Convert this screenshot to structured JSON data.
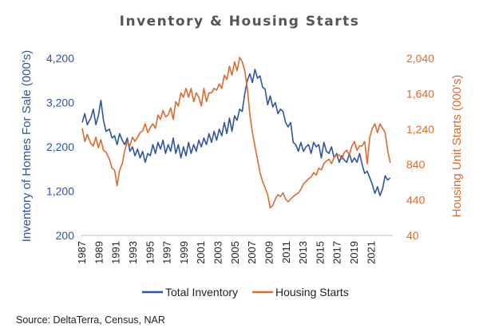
{
  "chart_data": {
    "type": "line",
    "title": "Inventory & Housing Starts",
    "source": "Source: DeltaTerra, Census, NAR",
    "y_left": {
      "label": "Inventory of Homes For Sale (000's)",
      "range": [
        200,
        4200
      ],
      "ticks": [
        "4,200",
        "3,200",
        "2,200",
        "1,200",
        "200"
      ],
      "color": "#2F54A4"
    },
    "y_right": {
      "label": "Housing Unit Starts (000's)",
      "range": [
        40,
        2040
      ],
      "ticks": [
        "2,040",
        "1,640",
        "1,240",
        "840",
        "440",
        "40"
      ],
      "color": "#E06A2C"
    },
    "x_axis": {
      "range": [
        1987,
        2023.5
      ],
      "ticks": [
        "1987",
        "1989",
        "1991",
        "1993",
        "1995",
        "1997",
        "1999",
        "2001",
        "2003",
        "2005",
        "2007",
        "2009",
        "2011",
        "2013",
        "2015",
        "2017",
        "2019",
        "2021"
      ]
    },
    "series": [
      {
        "name": "Total Inventory",
        "axis": "left",
        "color": "#2F54A4",
        "x": [
          1987.0,
          1987.3,
          1987.6,
          1988.0,
          1988.3,
          1988.6,
          1988.9,
          1989.2,
          1989.5,
          1989.8,
          1990.2,
          1990.5,
          1990.8,
          1991.1,
          1991.4,
          1991.7,
          1992.0,
          1992.3,
          1992.6,
          1992.9,
          1993.2,
          1993.5,
          1993.8,
          1994.1,
          1994.4,
          1994.7,
          1995.0,
          1995.3,
          1995.6,
          1995.9,
          1996.2,
          1996.5,
          1996.8,
          1997.1,
          1997.4,
          1997.7,
          1998.0,
          1998.3,
          1998.6,
          1998.9,
          1999.2,
          1999.5,
          1999.8,
          2000.1,
          2000.4,
          2000.7,
          2001.0,
          2001.3,
          2001.6,
          2001.9,
          2002.2,
          2002.5,
          2002.8,
          2003.1,
          2003.4,
          2003.7,
          2004.0,
          2004.3,
          2004.6,
          2004.9,
          2005.2,
          2005.5,
          2005.8,
          2006.1,
          2006.4,
          2006.7,
          2007.0,
          2007.3,
          2007.6,
          2007.9,
          2008.2,
          2008.5,
          2008.8,
          2009.1,
          2009.4,
          2009.7,
          2010.0,
          2010.3,
          2010.6,
          2010.9,
          2011.2,
          2011.5,
          2011.8,
          2012.1,
          2012.4,
          2012.7,
          2013.0,
          2013.3,
          2013.6,
          2013.9,
          2014.2,
          2014.5,
          2014.8,
          2015.1,
          2015.4,
          2015.7,
          2016.0,
          2016.3,
          2016.6,
          2016.9,
          2017.2,
          2017.5,
          2017.8,
          2018.1,
          2018.4,
          2018.7,
          2019.0,
          2019.3,
          2019.6,
          2019.9,
          2020.2,
          2020.5,
          2020.8,
          2021.1,
          2021.4,
          2021.7,
          2022.0,
          2022.3,
          2022.6,
          2022.9,
          2023.2
        ],
        "values": [
          2750,
          2950,
          2700,
          2850,
          3050,
          2700,
          2900,
          3250,
          2800,
          2550,
          2600,
          2400,
          2450,
          2250,
          2500,
          2350,
          2250,
          2400,
          2100,
          2200,
          2000,
          2150,
          1950,
          2100,
          1850,
          2050,
          2000,
          2250,
          2050,
          2300,
          2150,
          2350,
          2050,
          2250,
          2100,
          2400,
          2050,
          2250,
          1950,
          2200,
          2000,
          2300,
          2050,
          2250,
          2100,
          2350,
          2200,
          2400,
          2250,
          2500,
          2300,
          2550,
          2350,
          2600,
          2450,
          2750,
          2500,
          2850,
          2550,
          2900,
          2800,
          3050,
          3000,
          3400,
          3700,
          3850,
          3650,
          3950,
          3750,
          3800,
          3550,
          3500,
          3150,
          3350,
          3100,
          3200,
          2950,
          3050,
          3000,
          2750,
          2650,
          2750,
          2300,
          2250,
          2100,
          2300,
          2100,
          2200,
          2250,
          2050,
          2300,
          2200,
          2250,
          1950,
          2300,
          2100,
          2050,
          2200,
          1950,
          2050,
          1850,
          2000,
          1900,
          1850,
          2050,
          1850,
          1950,
          1850,
          2050,
          1800,
          1600,
          1650,
          1500,
          1350,
          1150,
          1300,
          1100,
          1250,
          1550,
          1450,
          1500
        ]
      },
      {
        "name": "Housing Starts",
        "axis": "right",
        "color": "#E06A2C",
        "x": [
          1987.0,
          1987.3,
          1987.6,
          1988.0,
          1988.3,
          1988.6,
          1988.9,
          1989.2,
          1989.5,
          1989.8,
          1990.2,
          1990.5,
          1990.8,
          1991.1,
          1991.4,
          1991.7,
          1992.0,
          1992.3,
          1992.6,
          1992.9,
          1993.2,
          1993.5,
          1993.8,
          1994.1,
          1994.4,
          1994.7,
          1995.0,
          1995.3,
          1995.6,
          1995.9,
          1996.2,
          1996.5,
          1996.8,
          1997.1,
          1997.4,
          1997.7,
          1998.0,
          1998.3,
          1998.6,
          1998.9,
          1999.2,
          1999.5,
          1999.8,
          2000.1,
          2000.4,
          2000.7,
          2001.0,
          2001.3,
          2001.6,
          2001.9,
          2002.2,
          2002.5,
          2002.8,
          2003.1,
          2003.4,
          2003.7,
          2004.0,
          2004.3,
          2004.6,
          2004.9,
          2005.2,
          2005.5,
          2005.8,
          2006.1,
          2006.4,
          2006.7,
          2007.0,
          2007.3,
          2007.6,
          2007.9,
          2008.2,
          2008.5,
          2008.8,
          2009.1,
          2009.4,
          2009.7,
          2010.0,
          2010.3,
          2010.6,
          2010.9,
          2011.2,
          2011.5,
          2011.8,
          2012.1,
          2012.4,
          2012.7,
          2013.0,
          2013.3,
          2013.6,
          2013.9,
          2014.2,
          2014.5,
          2014.8,
          2015.1,
          2015.4,
          2015.7,
          2016.0,
          2016.3,
          2016.6,
          2016.9,
          2017.2,
          2017.5,
          2017.8,
          2018.1,
          2018.4,
          2018.7,
          2019.0,
          2019.3,
          2019.6,
          2019.9,
          2020.2,
          2020.5,
          2020.8,
          2021.1,
          2021.4,
          2021.7,
          2022.0,
          2022.3,
          2022.6,
          2022.9,
          2023.2
        ],
        "values": [
          1250,
          1100,
          1180,
          1080,
          1050,
          1150,
          1030,
          1120,
          1000,
          980,
          900,
          800,
          780,
          600,
          780,
          850,
          1000,
          1100,
          1050,
          1150,
          1100,
          1150,
          1200,
          1220,
          1300,
          1200,
          1260,
          1300,
          1250,
          1400,
          1350,
          1450,
          1380,
          1400,
          1480,
          1350,
          1550,
          1500,
          1650,
          1600,
          1700,
          1600,
          1700,
          1550,
          1650,
          1600,
          1500,
          1700,
          1550,
          1650,
          1650,
          1700,
          1680,
          1750,
          1700,
          1850,
          1800,
          1950,
          1850,
          2000,
          1900,
          2050,
          2000,
          1900,
          1700,
          1400,
          1200,
          1050,
          900,
          750,
          650,
          580,
          500,
          350,
          380,
          450,
          500,
          480,
          520,
          450,
          420,
          450,
          480,
          500,
          520,
          560,
          620,
          650,
          680,
          700,
          750,
          720,
          800,
          780,
          850,
          880,
          900,
          850,
          920,
          950,
          950,
          900,
          980,
          1000,
          950,
          1050,
          1100,
          1000,
          1050,
          1050,
          1100,
          850,
          1150,
          1250,
          1300,
          1200,
          1300,
          1250,
          1200,
          1000,
          860
        ]
      }
    ],
    "grid": false,
    "legend": "bottom"
  }
}
